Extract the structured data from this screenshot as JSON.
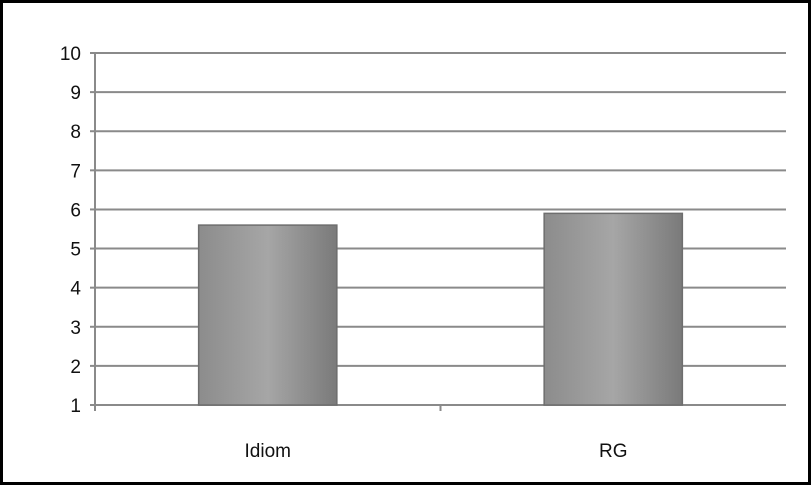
{
  "chart_data": {
    "type": "bar",
    "categories": [
      "Idiom",
      "RG"
    ],
    "values": [
      5.6,
      5.9
    ],
    "ylim": [
      1,
      10
    ],
    "yticks": [
      1,
      2,
      3,
      4,
      5,
      6,
      7,
      8,
      9,
      10
    ],
    "grid": true,
    "legend": "none",
    "title": "",
    "xlabel": "",
    "ylabel": "",
    "colors": {
      "bar_fill_top": "#a6a6a6",
      "bar_fill_mid": "#8c8c8c",
      "bar_fill_bottom": "#7a7a7a",
      "bar_stroke": "#6e6e6e",
      "grid": "#8a8a8a",
      "axis": "#8a8a8a"
    }
  }
}
